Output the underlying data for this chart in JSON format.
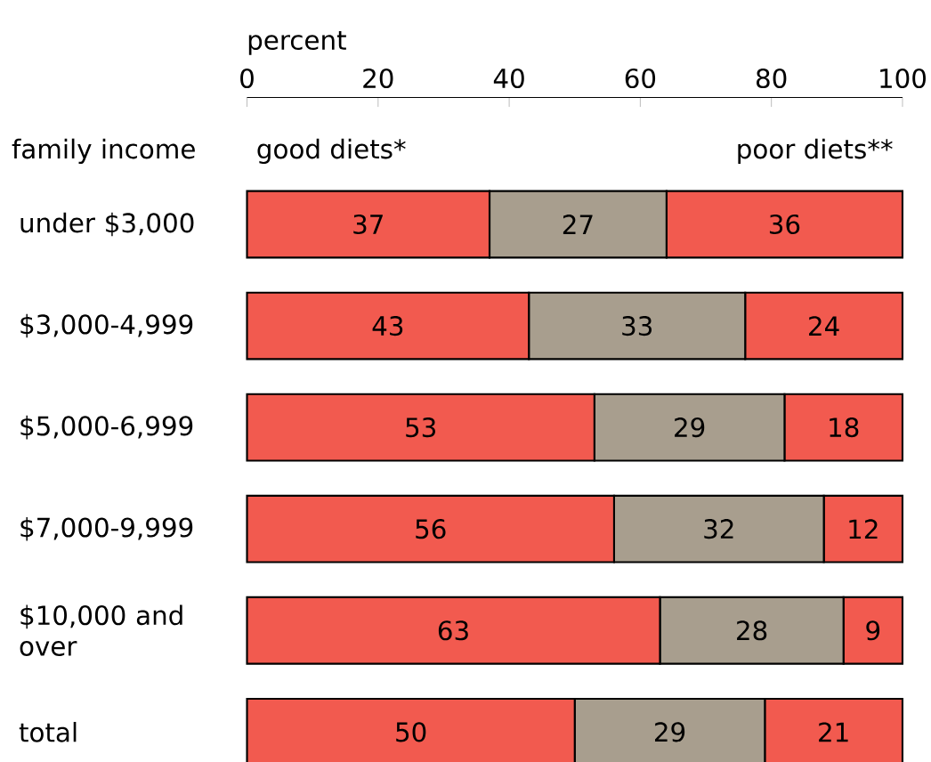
{
  "chart_data": {
    "type": "bar",
    "orientation": "horizontal",
    "stacked": true,
    "data_labels": true,
    "xlabel": "percent",
    "ylabel": "family income",
    "categories": [
      "under $3,000",
      "$3,000-4,999",
      "$5,000-6,999",
      "$7,000-9,999",
      "$10,000 and over",
      "total"
    ],
    "series": [
      {
        "name": "good diets*",
        "color": "#f25a4f",
        "values": [
          37,
          43,
          53,
          56,
          63,
          50
        ]
      },
      {
        "color": "#a89e8e",
        "values": [
          27,
          33,
          29,
          32,
          28,
          29
        ]
      },
      {
        "name": "poor diets**",
        "color": "#f25a4f",
        "values": [
          36,
          24,
          18,
          12,
          9,
          21
        ]
      }
    ],
    "xlim": [
      0,
      100
    ],
    "xticks": [
      0,
      20,
      40,
      60,
      80,
      100
    ]
  }
}
